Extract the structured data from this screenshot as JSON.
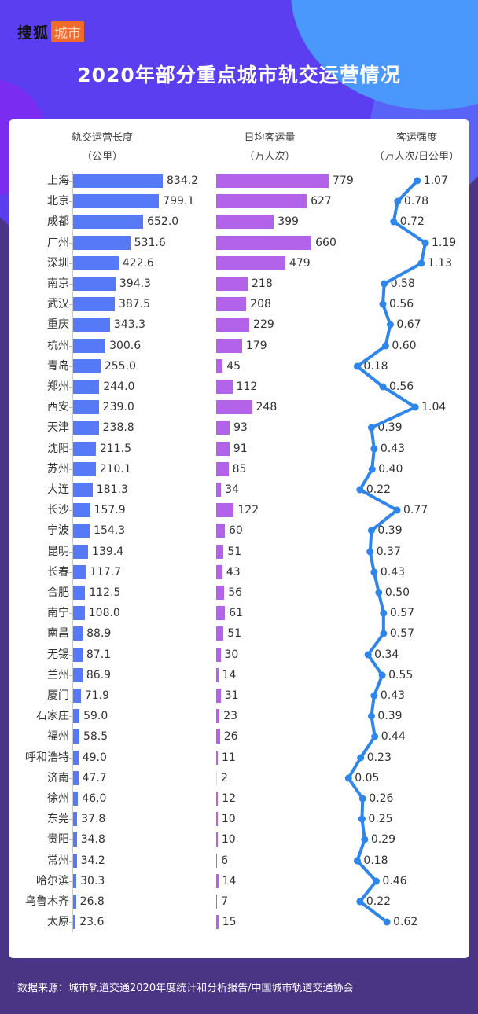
{
  "brand": {
    "name": "搜狐",
    "tag": "城市"
  },
  "title": "2020年部分重点城市轨交运营情况",
  "columns": [
    {
      "title": "轨交运营长度",
      "unit": "（公里）"
    },
    {
      "title": "日均客运量",
      "unit": "（万人次）"
    },
    {
      "title": "客运强度",
      "unit": "（万人次/日公里）"
    }
  ],
  "footer": "数据来源：城市轨道交通2020年度统计和分析报告/中国城市轨道交通协会",
  "colors": {
    "length_bar": "#5579f7",
    "ridership_bar": "#b362ea",
    "intensity_line": "#2f86ea",
    "background": "#4a3584"
  },
  "chart_data": [
    {
      "type": "bar",
      "orientation": "horizontal",
      "title": "轨交运营长度（公里）",
      "categories": [
        "上海",
        "北京",
        "成都",
        "广州",
        "深圳",
        "南京",
        "武汉",
        "重庆",
        "杭州",
        "青岛",
        "郑州",
        "西安",
        "天津",
        "沈阳",
        "苏州",
        "大连",
        "长沙",
        "宁波",
        "昆明",
        "长春",
        "合肥",
        "南宁",
        "南昌",
        "无锡",
        "兰州",
        "厦门",
        "石家庄",
        "福州",
        "呼和浩特",
        "济南",
        "徐州",
        "东莞",
        "贵阳",
        "常州",
        "哈尔滨",
        "乌鲁木齐",
        "太原"
      ],
      "values": [
        834.2,
        799.1,
        652.0,
        531.6,
        422.6,
        394.3,
        387.5,
        343.3,
        300.6,
        255.0,
        244.0,
        239.0,
        238.8,
        211.5,
        210.1,
        181.3,
        157.9,
        154.3,
        139.4,
        117.7,
        112.5,
        108.0,
        88.9,
        87.1,
        86.9,
        71.9,
        59.0,
        58.5,
        49.0,
        47.7,
        46.0,
        37.8,
        34.8,
        34.2,
        30.3,
        26.8,
        23.6
      ],
      "labels": [
        "834.2",
        "799.1",
        "652.0",
        "531.6",
        "422.6",
        "394.3",
        "387.5",
        "343.3",
        "300.6",
        "255.0",
        "244.0",
        "239.0",
        "238.8",
        "211.5",
        "210.1",
        "181.3",
        "157.9",
        "154.3",
        "139.4",
        "117.7",
        "112.5",
        "108.0",
        "88.9",
        "87.1",
        "86.9",
        "71.9",
        "59.0",
        "58.5",
        "49.0",
        "47.7",
        "46.0",
        "37.8",
        "34.8",
        "34.2",
        "30.3",
        "26.8",
        "23.6"
      ]
    },
    {
      "type": "bar",
      "orientation": "horizontal",
      "title": "日均客运量（万人次）",
      "values": [
        779,
        627,
        399,
        660,
        479,
        218,
        208,
        229,
        179,
        45,
        112,
        248,
        93,
        91,
        85,
        34,
        122,
        60,
        51,
        43,
        56,
        61,
        51,
        30,
        14,
        31,
        23,
        26,
        11,
        2,
        12,
        10,
        10,
        6,
        14,
        7,
        15
      ]
    },
    {
      "type": "line",
      "title": "客运强度（万人次/日公里）",
      "values": [
        1.07,
        0.78,
        0.72,
        1.19,
        1.13,
        0.58,
        0.56,
        0.67,
        0.6,
        0.18,
        0.56,
        1.04,
        0.39,
        0.43,
        0.4,
        0.22,
        0.77,
        0.39,
        0.37,
        0.43,
        0.5,
        0.57,
        0.57,
        0.34,
        0.55,
        0.43,
        0.39,
        0.44,
        0.23,
        0.05,
        0.26,
        0.25,
        0.29,
        0.18,
        0.46,
        0.22,
        0.62
      ],
      "labels": [
        "1.07",
        "0.78",
        "0.72",
        "1.19",
        "1.13",
        "0.58",
        "0.56",
        "0.67",
        "0.60",
        "0.18",
        "0.56",
        "1.04",
        "0.39",
        "0.43",
        "0.40",
        "0.22",
        "0.77",
        "0.39",
        "0.37",
        "0.43",
        "0.50",
        "0.57",
        "0.57",
        "0.34",
        "0.55",
        "0.43",
        "0.39",
        "0.44",
        "0.23",
        "0.05",
        "0.26",
        "0.25",
        "0.29",
        "0.18",
        "0.46",
        "0.22",
        "0.62"
      ]
    }
  ]
}
